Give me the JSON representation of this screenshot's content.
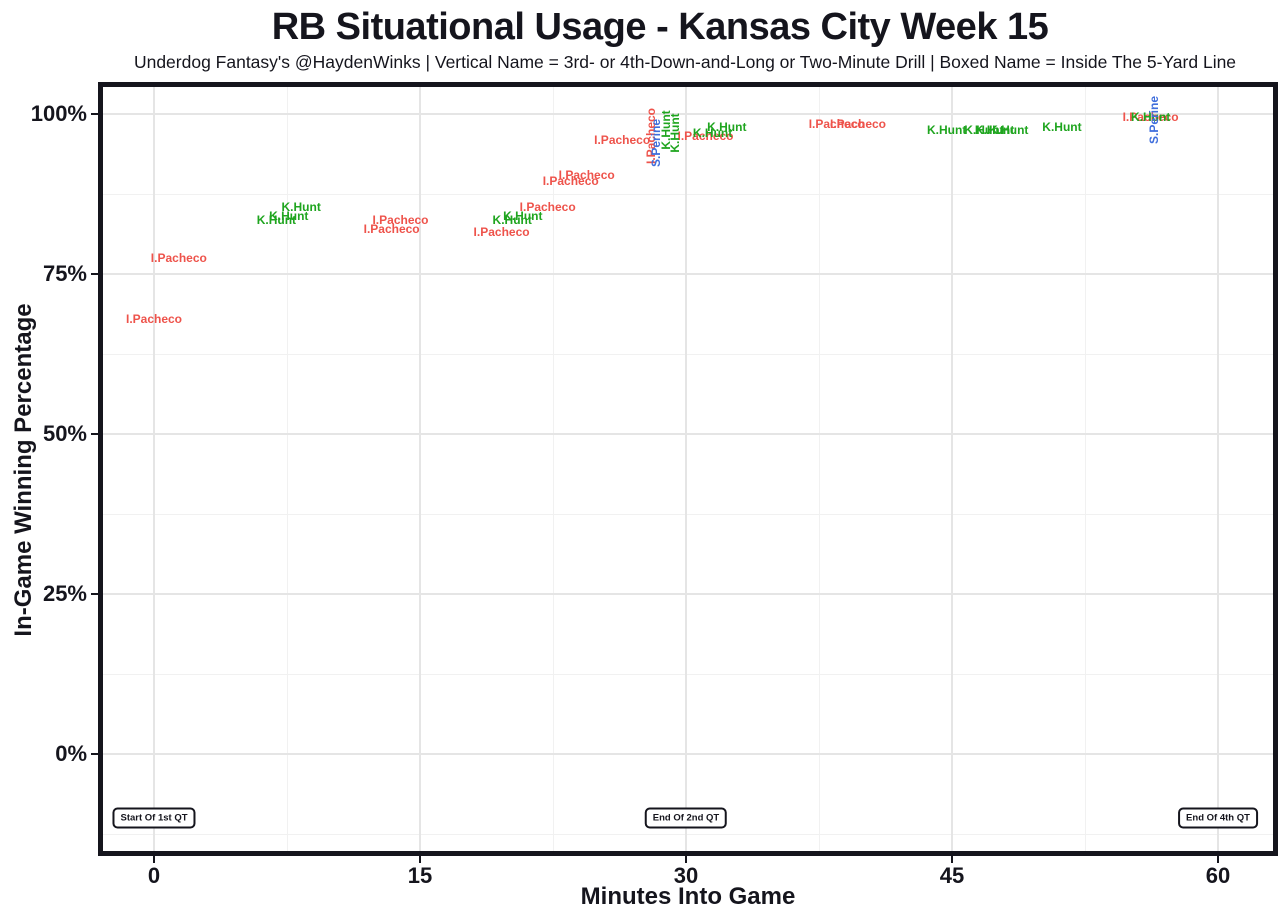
{
  "header": {
    "title": "RB Situational Usage - Kansas City Week 15",
    "subtitle": "Underdog Fantasy's @HaydenWinks | Vertical Name = 3rd- or 4th-Down-and-Long or Two-Minute Drill | Boxed Name = Inside The 5-Yard Line"
  },
  "chart_data": {
    "type": "scatter",
    "title": "RB Situational Usage - Kansas City Week 15",
    "subtitle": "Underdog Fantasy's @HaydenWinks | Vertical Name = 3rd- or 4th-Down-and-Long or Two-Minute Drill | Boxed Name = Inside The 5-Yard Line",
    "xlabel": "Minutes Into Game",
    "ylabel": "In-Game Winning Percentage",
    "xlim": [
      -3,
      63
    ],
    "ylim": [
      -15,
      104
    ],
    "grid": true,
    "x_ticks": [
      {
        "value": 0,
        "label": "0"
      },
      {
        "value": 15,
        "label": "15"
      },
      {
        "value": 30,
        "label": "30"
      },
      {
        "value": 45,
        "label": "45"
      },
      {
        "value": 60,
        "label": "60"
      }
    ],
    "x_minor": [
      7.5,
      22.5,
      37.5,
      52.5
    ],
    "y_ticks": [
      {
        "value": 0,
        "label": "0%"
      },
      {
        "value": 25,
        "label": "25%"
      },
      {
        "value": 50,
        "label": "50%"
      },
      {
        "value": 75,
        "label": "75%"
      },
      {
        "value": 100,
        "label": "100%"
      }
    ],
    "y_minor": [
      -12.5,
      12.5,
      37.5,
      62.5,
      87.5
    ],
    "series": [
      {
        "name": "I.Pacheco",
        "color": "#EE534B",
        "points": [
          {
            "min": 0.0,
            "pct": 68,
            "vertical": false
          },
          {
            "min": 1.4,
            "pct": 77.5,
            "vertical": false
          },
          {
            "min": 13.4,
            "pct": 82,
            "vertical": false
          },
          {
            "min": 13.9,
            "pct": 83.5,
            "vertical": false
          },
          {
            "min": 19.6,
            "pct": 81.5,
            "vertical": false
          },
          {
            "min": 22.2,
            "pct": 85.5,
            "vertical": false
          },
          {
            "min": 23.5,
            "pct": 89.5,
            "vertical": false
          },
          {
            "min": 24.4,
            "pct": 90.5,
            "vertical": false
          },
          {
            "min": 26.4,
            "pct": 96,
            "vertical": false
          },
          {
            "min": 28.0,
            "pct": 96.5,
            "vertical": true
          },
          {
            "min": 31.1,
            "pct": 96.5,
            "vertical": false
          },
          {
            "min": 38.5,
            "pct": 98.5,
            "vertical": false
          },
          {
            "min": 39.7,
            "pct": 98.5,
            "vertical": false
          },
          {
            "min": 56.2,
            "pct": 99.5,
            "vertical": false
          }
        ]
      },
      {
        "name": "K.Hunt",
        "color": "#1FA51F",
        "points": [
          {
            "min": 6.9,
            "pct": 83.5,
            "vertical": false
          },
          {
            "min": 7.6,
            "pct": 84,
            "vertical": false
          },
          {
            "min": 8.3,
            "pct": 85.5,
            "vertical": false
          },
          {
            "min": 20.2,
            "pct": 83.5,
            "vertical": false
          },
          {
            "min": 20.8,
            "pct": 84,
            "vertical": false
          },
          {
            "min": 28.9,
            "pct": 97.5,
            "vertical": true
          },
          {
            "min": 29.4,
            "pct": 97,
            "vertical": true
          },
          {
            "min": 31.5,
            "pct": 97,
            "vertical": false
          },
          {
            "min": 32.3,
            "pct": 98,
            "vertical": false
          },
          {
            "min": 44.7,
            "pct": 97.5,
            "vertical": false
          },
          {
            "min": 46.8,
            "pct": 97.5,
            "vertical": false
          },
          {
            "min": 47.4,
            "pct": 97.5,
            "vertical": false
          },
          {
            "min": 48.2,
            "pct": 97.5,
            "vertical": false
          },
          {
            "min": 51.2,
            "pct": 98,
            "vertical": false
          },
          {
            "min": 56.2,
            "pct": 99.5,
            "vertical": false
          }
        ]
      },
      {
        "name": "S.Perine",
        "color": "#3F6EDC",
        "points": [
          {
            "min": 28.3,
            "pct": 95.5,
            "vertical": true
          },
          {
            "min": 56.4,
            "pct": 99,
            "vertical": true
          }
        ]
      }
    ],
    "annotations": [
      {
        "label": "Start Of 1st QT",
        "min": 0,
        "pct": -10
      },
      {
        "label": "End Of 2nd QT",
        "min": 30,
        "pct": -10
      },
      {
        "label": "End Of 4th QT",
        "min": 60,
        "pct": -10
      }
    ]
  },
  "colors": {
    "pacheco_red": "#EE534B",
    "hunt_green": "#1FA51F",
    "perine_blue": "#3F6EDC",
    "text_dark": "#15151D",
    "grid_major": "#E5E5E5",
    "grid_minor": "#F1F1F1",
    "panel_border": "#15151D",
    "background": "#FFFFFF"
  }
}
